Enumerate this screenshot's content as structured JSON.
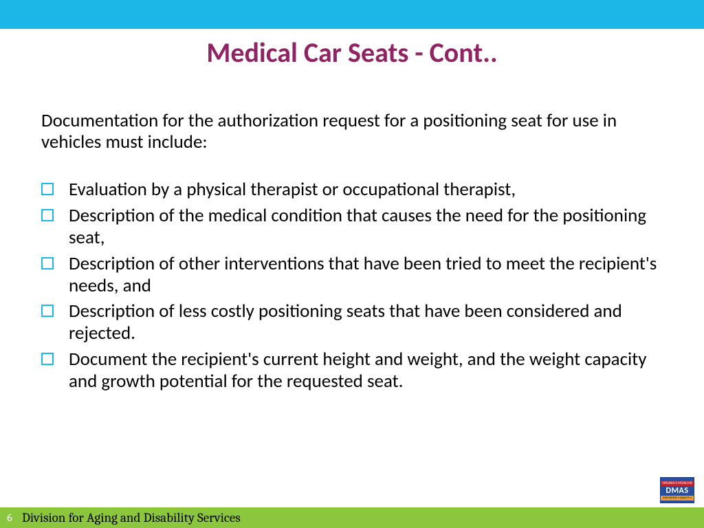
{
  "colors": {
    "top_bar": "#1cb7e6",
    "title": "#8e2462",
    "bullet_border": "#1cb7e6",
    "footer_bar": "#8cc63f",
    "body_text": "#000000"
  },
  "title": {
    "text": "Medical Car Seats - Cont..",
    "fontsize": 40
  },
  "intro": "Documentation for the authorization request for a positioning seat for use in vehicles must include:",
  "bullets": [
    "Evaluation by a physical therapist or occupational therapist,",
    "Description of the medical condition that causes the need for the positioning seat,",
    "Description of other interventions that have been tried to meet the recipient's needs, and",
    "Description of less costly positioning seats that have been considered and rejected.",
    "Document the recipient's current height and weight, and the weight capacity and growth potential for the requested seat."
  ],
  "footer": {
    "page_number": "6",
    "text": "Division for Aging and Disability Services"
  },
  "logo": {
    "top": "VIRGINIA'S MEDICAID PROGRAM",
    "main": "DMAS",
    "bottom": "INNOVATION • QUALITY • VALUE"
  }
}
